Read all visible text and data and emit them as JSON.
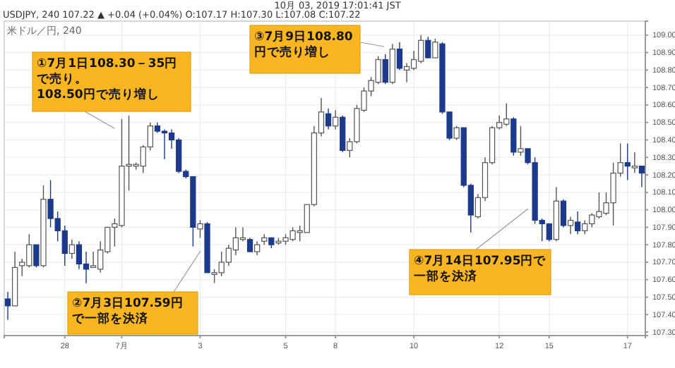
{
  "chart_data": {
    "type": "candlestick",
    "title": "10月 03, 2019 17:01:41 JST",
    "subtitle": "USDJPY, 240 107.22 ▲ +0.04 (+0.04%) O:107.17 H:107.30 L:107.08 C:107.22",
    "annotations": [
      "米ドル／円, 240",
      "①7月1日108.30－35円で売り。108.50円で売り増し",
      "②7月3日107.59円で一部を決済",
      "③7月9日108.80円で売り増し",
      "④7月14日107.95円で一部を決済"
    ],
    "categories": [
      null,
      null,
      null,
      null,
      null,
      null,
      null,
      null,
      "28",
      null,
      null,
      null,
      null,
      null,
      null,
      null,
      "7月",
      null,
      null,
      null,
      null,
      null,
      null,
      null,
      null,
      null,
      null,
      "3",
      null,
      null,
      null,
      null,
      null,
      null,
      null,
      null,
      null,
      null,
      null,
      "5",
      null,
      null,
      null,
      null,
      null,
      null,
      "8",
      null,
      null,
      null,
      null,
      null,
      null,
      null,
      null,
      null,
      null,
      "10",
      null,
      null,
      null,
      null,
      null,
      null,
      null,
      null,
      null,
      null,
      null,
      "12",
      null,
      null,
      null,
      null,
      null,
      null,
      "15",
      null,
      null,
      null,
      null,
      null,
      null,
      null,
      null,
      null,
      null,
      "17",
      null,
      null
    ],
    "ohlc": [
      [
        107.49,
        107.53,
        107.37,
        107.45
      ],
      [
        107.45,
        107.76,
        107.45,
        107.67
      ],
      [
        107.68,
        107.72,
        107.62,
        107.7
      ],
      [
        107.68,
        107.86,
        107.67,
        107.8
      ],
      [
        107.8,
        107.8,
        107.67,
        107.68
      ],
      [
        107.68,
        108.14,
        107.67,
        108.06
      ],
      [
        108.06,
        108.17,
        107.9,
        107.95
      ],
      [
        107.95,
        107.99,
        107.82,
        107.88
      ],
      [
        107.88,
        107.91,
        107.68,
        107.75
      ],
      [
        107.75,
        107.83,
        107.72,
        107.8
      ],
      [
        107.8,
        107.82,
        107.66,
        107.69
      ],
      [
        107.69,
        107.76,
        107.58,
        107.66
      ],
      [
        107.67,
        107.76,
        107.67,
        107.68
      ],
      [
        107.66,
        107.82,
        107.64,
        107.77
      ],
      [
        107.76,
        107.9,
        107.75,
        107.9
      ],
      [
        107.9,
        107.95,
        107.79,
        107.92
      ],
      [
        107.91,
        108.52,
        107.9,
        108.25
      ],
      [
        108.25,
        108.54,
        108.11,
        108.26
      ],
      [
        108.25,
        108.27,
        108.23,
        108.26
      ],
      [
        108.25,
        108.37,
        108.21,
        108.36
      ],
      [
        108.36,
        108.5,
        108.34,
        108.48
      ],
      [
        108.48,
        108.5,
        108.44,
        108.45
      ],
      [
        108.45,
        108.46,
        108.29,
        108.44
      ],
      [
        108.44,
        108.46,
        108.35,
        108.4
      ],
      [
        108.4,
        108.41,
        108.21,
        108.22
      ],
      [
        108.22,
        108.23,
        108.18,
        108.19
      ],
      [
        108.19,
        108.19,
        107.79,
        107.9
      ],
      [
        107.89,
        107.94,
        107.84,
        107.92
      ],
      [
        107.92,
        107.93,
        107.64,
        107.64
      ],
      [
        107.63,
        107.66,
        107.58,
        107.64
      ],
      [
        107.64,
        107.76,
        107.62,
        107.7
      ],
      [
        107.7,
        107.8,
        107.68,
        107.78
      ],
      [
        107.77,
        107.9,
        107.74,
        107.84
      ],
      [
        107.83,
        107.9,
        107.82,
        107.84
      ],
      [
        107.83,
        107.84,
        107.76,
        107.76
      ],
      [
        107.76,
        107.82,
        107.74,
        107.8
      ],
      [
        107.82,
        107.86,
        107.8,
        107.84
      ],
      [
        107.84,
        107.84,
        107.78,
        107.8
      ],
      [
        107.81,
        107.84,
        107.8,
        107.82
      ],
      [
        107.82,
        107.86,
        107.8,
        107.84
      ],
      [
        107.83,
        107.9,
        107.82,
        107.88
      ],
      [
        107.87,
        107.91,
        107.82,
        107.88
      ],
      [
        107.87,
        108.03,
        107.87,
        108.03
      ],
      [
        108.03,
        108.48,
        108.02,
        108.44
      ],
      [
        108.44,
        108.64,
        108.42,
        108.56
      ],
      [
        108.55,
        108.58,
        108.46,
        108.48
      ],
      [
        108.48,
        108.57,
        108.46,
        108.53
      ],
      [
        108.53,
        108.54,
        108.33,
        108.34
      ],
      [
        108.34,
        108.41,
        108.3,
        108.39
      ],
      [
        108.39,
        108.6,
        108.38,
        108.58
      ],
      [
        108.57,
        108.7,
        108.56,
        108.68
      ],
      [
        108.68,
        108.76,
        108.65,
        108.74
      ],
      [
        108.73,
        108.88,
        108.72,
        108.86
      ],
      [
        108.86,
        108.89,
        108.72,
        108.73
      ],
      [
        108.73,
        108.95,
        108.72,
        108.92
      ],
      [
        108.92,
        108.96,
        108.8,
        108.81
      ],
      [
        108.8,
        108.84,
        108.73,
        108.82
      ],
      [
        108.81,
        108.91,
        108.8,
        108.86
      ],
      [
        108.85,
        109.0,
        108.84,
        108.97
      ],
      [
        108.97,
        108.99,
        108.87,
        108.87
      ],
      [
        108.87,
        108.98,
        108.87,
        108.96
      ],
      [
        108.95,
        108.96,
        108.55,
        108.56
      ],
      [
        108.56,
        108.56,
        108.4,
        108.41
      ],
      [
        108.41,
        108.48,
        108.4,
        108.47
      ],
      [
        108.47,
        108.47,
        108.13,
        108.14
      ],
      [
        108.14,
        108.15,
        107.87,
        107.97
      ],
      [
        107.96,
        108.09,
        107.95,
        108.07
      ],
      [
        108.07,
        108.3,
        108.05,
        108.27
      ],
      [
        108.27,
        108.48,
        108.26,
        108.47
      ],
      [
        108.47,
        108.54,
        108.46,
        108.5
      ],
      [
        108.49,
        108.61,
        108.48,
        108.52
      ],
      [
        108.52,
        108.53,
        108.31,
        108.33
      ],
      [
        108.33,
        108.48,
        108.31,
        108.35
      ],
      [
        108.35,
        108.35,
        108.26,
        108.27
      ],
      [
        108.27,
        108.3,
        107.92,
        107.94
      ],
      [
        107.94,
        107.95,
        107.82,
        107.92
      ],
      [
        107.92,
        107.92,
        107.82,
        107.83
      ],
      [
        107.83,
        108.13,
        107.82,
        108.05
      ],
      [
        108.05,
        108.06,
        107.9,
        107.91
      ],
      [
        107.91,
        107.96,
        107.86,
        107.94
      ],
      [
        107.93,
        107.99,
        107.86,
        107.88
      ],
      [
        107.88,
        107.94,
        107.86,
        107.92
      ],
      [
        107.92,
        107.98,
        107.9,
        107.97
      ],
      [
        107.96,
        108.1,
        107.95,
        107.99
      ],
      [
        107.98,
        108.1,
        107.97,
        108.04
      ],
      [
        108.04,
        108.27,
        107.91,
        108.21
      ],
      [
        108.21,
        108.38,
        108.19,
        108.27
      ],
      [
        108.27,
        108.38,
        108.17,
        108.25
      ],
      [
        108.24,
        108.33,
        108.21,
        108.25
      ],
      [
        108.25,
        108.25,
        108.13,
        108.21
      ]
    ],
    "ylim": [
      107.28,
      109.08
    ],
    "yticks": [
      {
        "value": 107.3,
        "label": "107.30"
      },
      {
        "value": 107.4,
        "label": "107.40"
      },
      {
        "value": 107.5,
        "label": "107.50"
      },
      {
        "value": 107.6,
        "label": "107.60"
      },
      {
        "value": 107.7,
        "label": "107.70"
      },
      {
        "value": 107.8,
        "label": "107.80"
      },
      {
        "value": 107.9,
        "label": "107.90"
      },
      {
        "value": 108,
        "label": "108.00"
      },
      {
        "value": 108.1,
        "label": "108.10"
      },
      {
        "value": 108.2,
        "label": "108.20"
      },
      {
        "value": 108.3,
        "label": "108.30"
      },
      {
        "value": 108.4,
        "label": "108.40"
      },
      {
        "value": 108.5,
        "label": "108.50"
      },
      {
        "value": 108.6,
        "label": "108.60"
      },
      {
        "value": 108.7,
        "label": "108.70"
      },
      {
        "value": 108.8,
        "label": "108.80"
      },
      {
        "value": 108.9,
        "label": "108.90"
      },
      {
        "value": 109,
        "label": "109.00"
      }
    ],
    "grid": true
  }
}
